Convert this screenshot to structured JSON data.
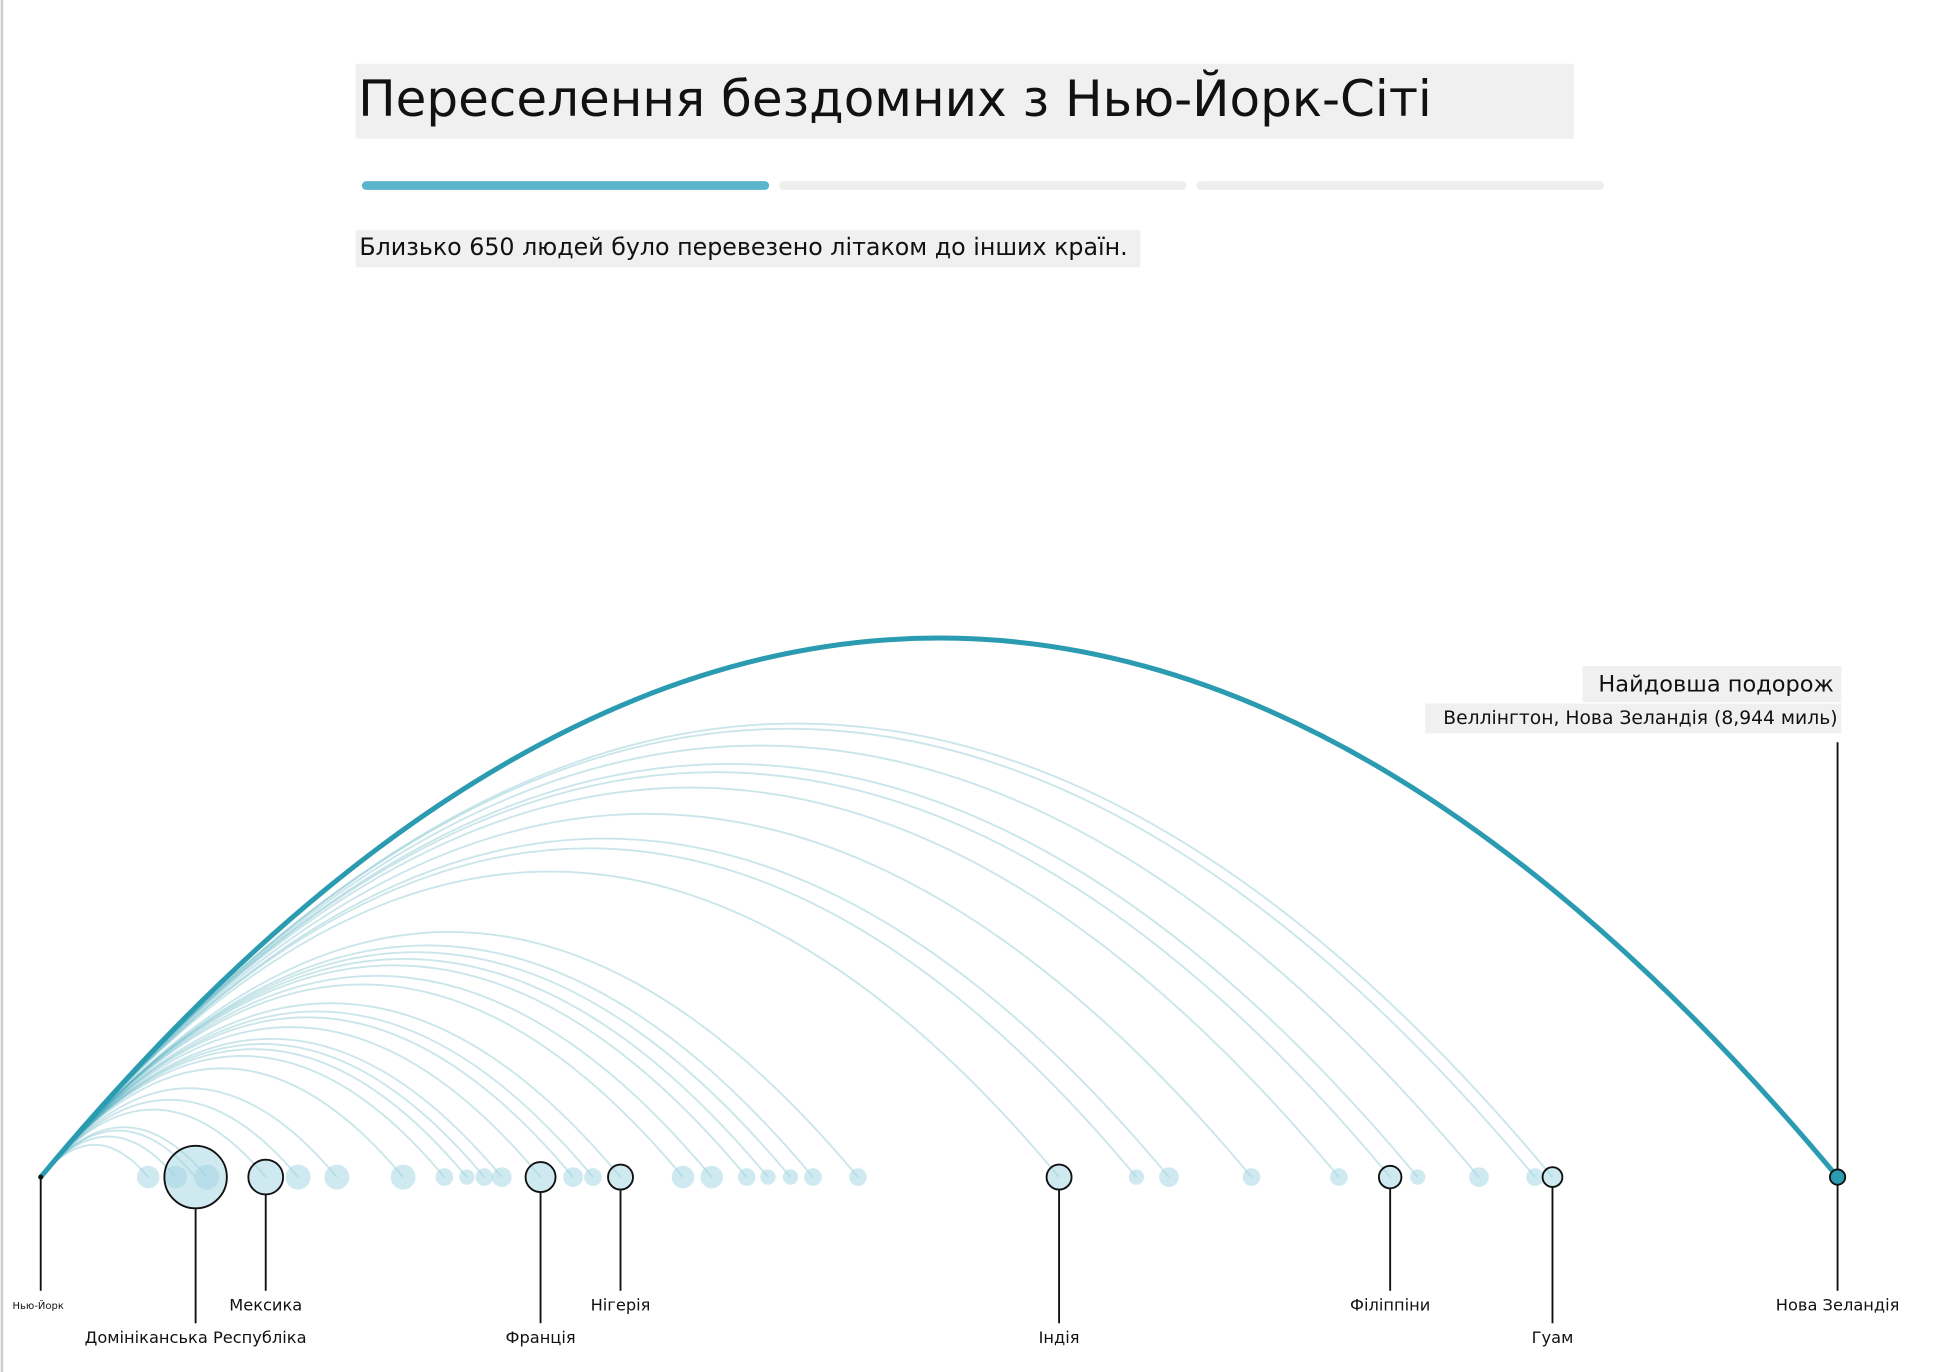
{
  "header": {
    "title": "Переселення бездомних з Нью-Йорк-Сіті",
    "subtitle": "Близько 650 людей було перевезено літаком до інших країн."
  },
  "chart_data": {
    "type": "arc",
    "origin_label": "Нью-Йорк",
    "x": [
      535,
      672,
      771,
      827,
      1120,
      1281,
      1474,
      1804,
      2009,
      2121,
      2208,
      2295,
      2488,
      2650,
      2749,
      2886,
      3197,
      3340,
      3514,
      3620,
      3732,
      3844,
      4068,
      5069,
      5454,
      5616,
      6027,
      6462,
      6717,
      6854,
      7159,
      7438,
      7525,
      8944
    ],
    "values": [
      13,
      13,
      100,
      16,
      31,
      16,
      16,
      16,
      8,
      6,
      8,
      10,
      23,
      10,
      8,
      16,
      13,
      13,
      8,
      6,
      6,
      8,
      8,
      16,
      6,
      10,
      8,
      8,
      13,
      6,
      10,
      8,
      10,
      6
    ],
    "categories": [
      null,
      null,
      "Домініканська Республіка",
      null,
      "Мексика",
      null,
      null,
      null,
      null,
      null,
      null,
      null,
      "Франція",
      null,
      null,
      "Нігерія",
      null,
      null,
      null,
      null,
      null,
      null,
      null,
      "Індія",
      null,
      null,
      null,
      null,
      "Філіппіни",
      null,
      null,
      null,
      "Гуам",
      "Нова Зеландія"
    ],
    "xlim": [
      0,
      8944
    ],
    "color": "#2a9bb0",
    "annotation": {
      "title": "Найдовша подорож",
      "text": "Веллінгтон, Нова Зеландія (8,944 миль)"
    }
  }
}
